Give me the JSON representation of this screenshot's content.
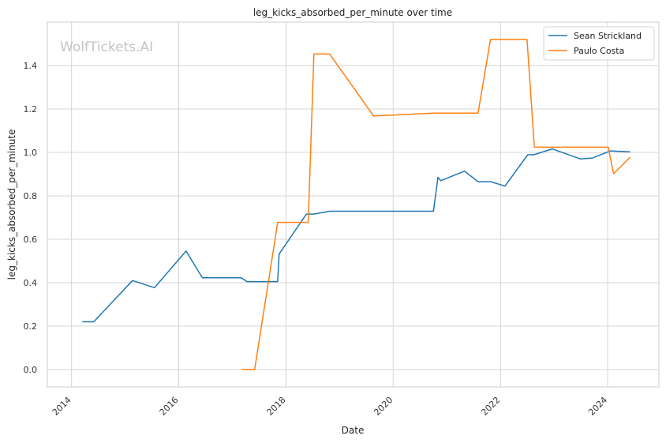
{
  "chart_data": {
    "type": "line",
    "title": "leg_kicks_absorbed_per_minute over time",
    "xlabel": "Date",
    "ylabel": "leg_kicks_absorbed_per_minute",
    "watermark": "WolfTickets.AI",
    "x_ticks": [
      "2014",
      "2016",
      "2018",
      "2020",
      "2022",
      "2024"
    ],
    "y_ticks": [
      "0.0",
      "0.2",
      "0.4",
      "0.6",
      "0.8",
      "1.0",
      "1.2",
      "1.4"
    ],
    "xlim": [
      "2013-07-20",
      "2024-12-15"
    ],
    "ylim": [
      -0.08,
      1.6
    ],
    "grid": true,
    "legend_position": "top-right",
    "colors": {
      "Sean Strickland": "#1f77b4",
      "Paulo Costa": "#ff7f0e"
    },
    "series": [
      {
        "name": "Sean Strickland",
        "color": "#1f77b4",
        "points": [
          [
            "2014-03-15",
            0.22
          ],
          [
            "2014-06-01",
            0.22
          ],
          [
            "2015-02-20",
            0.41
          ],
          [
            "2015-07-20",
            0.377
          ],
          [
            "2016-02-20",
            0.546
          ],
          [
            "2016-06-10",
            0.423
          ],
          [
            "2017-03-01",
            0.423
          ],
          [
            "2017-04-10",
            0.405
          ],
          [
            "2017-11-05",
            0.405
          ],
          [
            "2017-11-15",
            0.532
          ],
          [
            "2018-05-20",
            0.716
          ],
          [
            "2018-07-10",
            0.716
          ],
          [
            "2018-10-25",
            0.729
          ],
          [
            "2020-01-01",
            0.729
          ],
          [
            "2020-10-01",
            0.729
          ],
          [
            "2020-11-01",
            0.885
          ],
          [
            "2020-11-20",
            0.87
          ],
          [
            "2021-05-01",
            0.914
          ],
          [
            "2021-08-01",
            0.865
          ],
          [
            "2021-10-25",
            0.865
          ],
          [
            "2022-02-01",
            0.845
          ],
          [
            "2022-07-05",
            0.989
          ],
          [
            "2022-08-15",
            0.989
          ],
          [
            "2022-12-20",
            1.016
          ],
          [
            "2023-07-01",
            0.97
          ],
          [
            "2023-09-20",
            0.974
          ],
          [
            "2024-01-20",
            1.007
          ],
          [
            "2024-06-01",
            1.003
          ]
        ]
      },
      {
        "name": "Paulo Costa",
        "color": "#ff7f0e",
        "points": [
          [
            "2017-03-05",
            0.0
          ],
          [
            "2017-06-01",
            0.0
          ],
          [
            "2017-11-05",
            0.678
          ],
          [
            "2018-06-01",
            0.678
          ],
          [
            "2018-07-10",
            1.453
          ],
          [
            "2018-10-25",
            1.453
          ],
          [
            "2019-08-20",
            1.168
          ],
          [
            "2020-01-01",
            1.172
          ],
          [
            "2020-10-01",
            1.181
          ],
          [
            "2021-08-01",
            1.181
          ],
          [
            "2021-10-25",
            1.52
          ],
          [
            "2022-07-01",
            1.52
          ],
          [
            "2022-08-20",
            1.024
          ],
          [
            "2024-01-05",
            1.024
          ],
          [
            "2024-02-10",
            0.902
          ],
          [
            "2024-06-01",
            0.977
          ]
        ]
      }
    ]
  }
}
